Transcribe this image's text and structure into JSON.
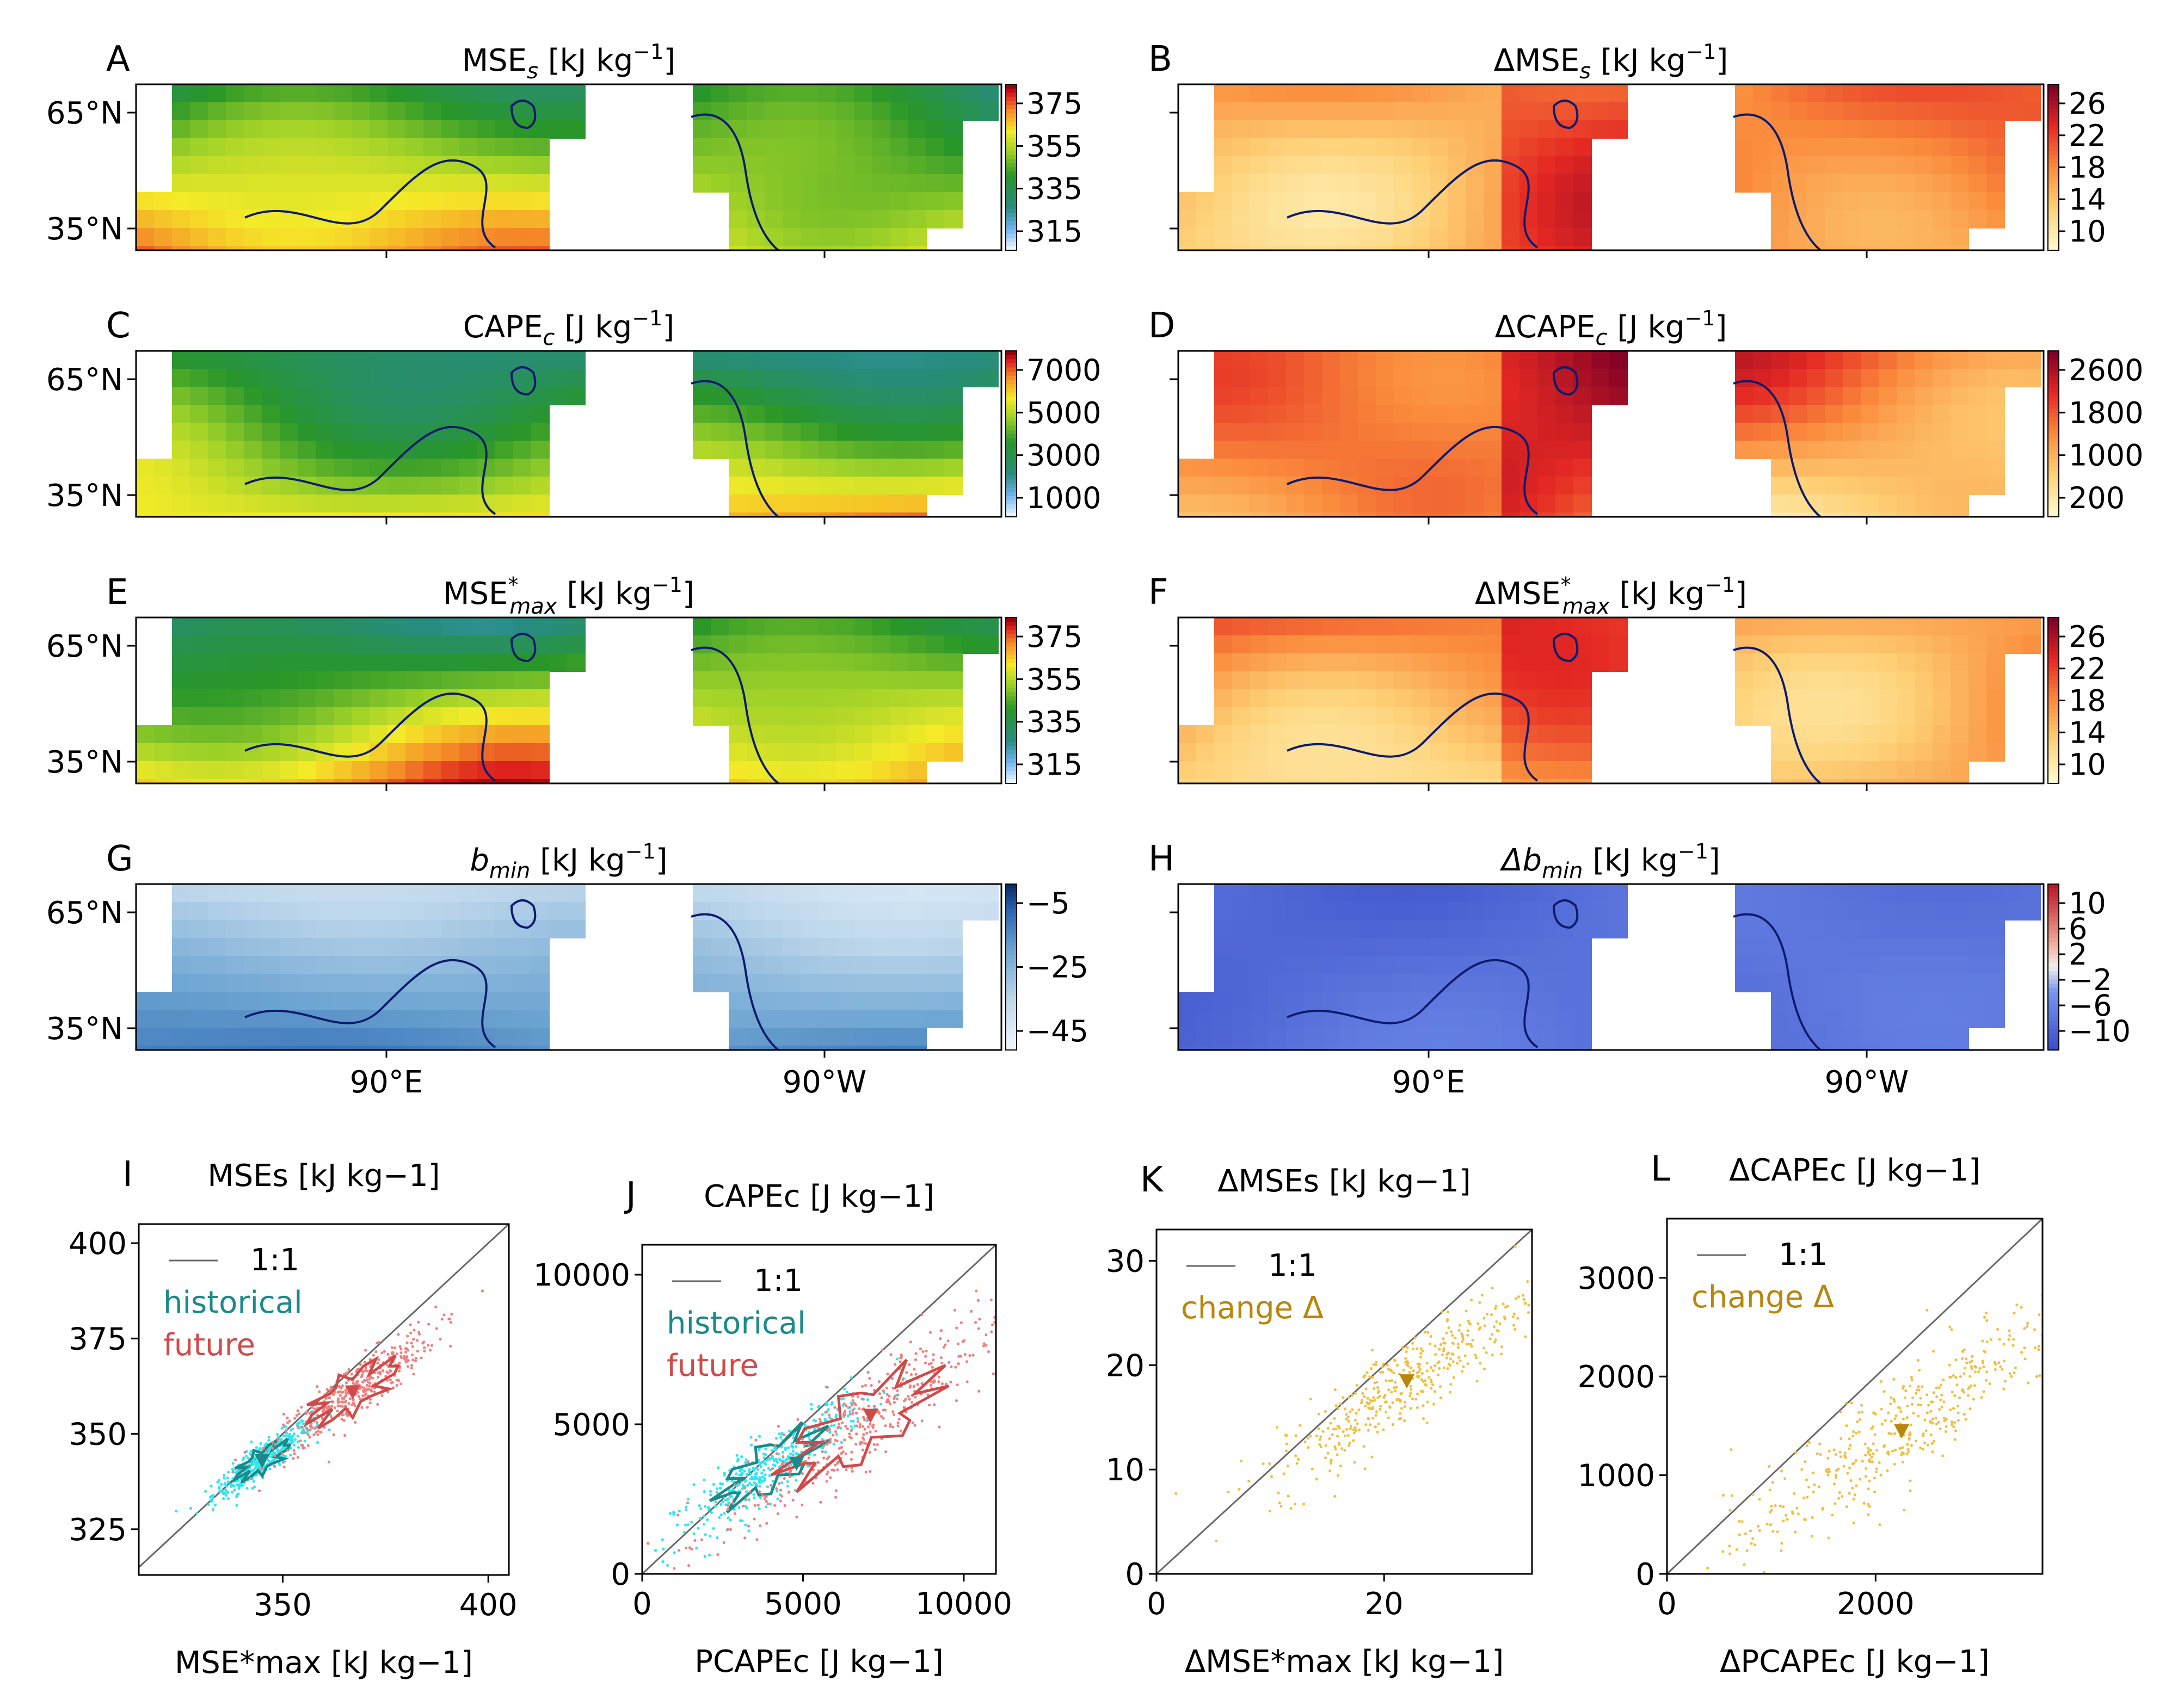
{
  "figure": {
    "map_panels": [
      {
        "letter": "A",
        "title_main": "MSE",
        "title_sub": "s",
        "title_unit": " [kJ kg",
        "cbar_ticks": [
          "375",
          "355",
          "335",
          "315"
        ],
        "cmap": "terrain"
      },
      {
        "letter": "B",
        "title_main": "ΔMSE",
        "title_sub": "s",
        "title_unit": " [kJ kg",
        "cbar_ticks": [
          "26",
          "22",
          "18",
          "14",
          "10"
        ],
        "cmap": "ylorrd"
      },
      {
        "letter": "C",
        "title_main": "CAPE",
        "title_sub": "c",
        "title_unit": " [J kg",
        "cbar_ticks": [
          "7000",
          "5000",
          "3000",
          "1000"
        ],
        "cmap": "terrain"
      },
      {
        "letter": "D",
        "title_main": "ΔCAPE",
        "title_sub": "c",
        "title_unit": " [J kg",
        "cbar_ticks": [
          "2600",
          "1800",
          "1000",
          "200"
        ],
        "cmap": "ylorrd"
      },
      {
        "letter": "E",
        "title_main": "MSE",
        "title_sub": "max",
        "title_sup": "*",
        "title_unit": " [kJ kg",
        "cbar_ticks": [
          "375",
          "355",
          "335",
          "315"
        ],
        "cmap": "terrain"
      },
      {
        "letter": "F",
        "title_main": "ΔMSE",
        "title_sub": "max",
        "title_sup": "*",
        "title_unit": " [kJ kg",
        "cbar_ticks": [
          "26",
          "22",
          "18",
          "14",
          "10"
        ],
        "cmap": "ylorrd"
      },
      {
        "letter": "G",
        "title_main": "b",
        "title_sub": "min",
        "title_unit": " [kJ kg",
        "cbar_ticks": [
          "−5",
          "−25",
          "−45"
        ],
        "cmap": "blues"
      },
      {
        "letter": "H",
        "title_main": "Δb",
        "title_sub": "min",
        "title_unit": " [kJ kg",
        "cbar_ticks": [
          "10",
          "6",
          "2",
          "−2",
          "−6",
          "−10"
        ],
        "cmap": "coolwarm"
      }
    ],
    "map_lat_ticks": [
      "65°N",
      "35°N"
    ],
    "map_lon_ticks": [
      "90°E",
      "90°W"
    ],
    "unit_exponent": "−1"
  },
  "chart_data": [
    {
      "type": "scatter",
      "panel": "I",
      "title": "MSEs [kJ kg−1]",
      "xlabel": "MSE*max [kJ kg−1]",
      "ylabel": "",
      "xlim": [
        315,
        405
      ],
      "ylim": [
        313,
        405
      ],
      "xticks": [
        "350",
        "400"
      ],
      "yticks": [
        "325",
        "350",
        "375",
        "400"
      ],
      "legend": [
        "1:1",
        "historical",
        "future"
      ],
      "series": [
        {
          "name": "historical",
          "color": "#1a8a8a",
          "point_color": "#2ee6f0",
          "center": [
            345,
            343
          ],
          "spread": 6,
          "mean_marker": [
            345,
            343
          ]
        },
        {
          "name": "future",
          "color": "#d04a4a",
          "point_color": "#f08080",
          "center": [
            367,
            361
          ],
          "spread": 10,
          "mean_marker": [
            367,
            361
          ]
        }
      ]
    },
    {
      "type": "scatter",
      "panel": "J",
      "title": "CAPEc [J kg−1]",
      "xlabel": "PCAPEc [J kg−1]",
      "ylabel": "",
      "xlim": [
        0,
        11000
      ],
      "ylim": [
        0,
        11000
      ],
      "xticks": [
        "0",
        "5000",
        "10000"
      ],
      "yticks": [
        "0",
        "5000",
        "10000"
      ],
      "legend": [
        "1:1",
        "historical",
        "future"
      ],
      "series": [
        {
          "name": "historical",
          "color": "#1a8a8a",
          "point_color": "#2ee6f0",
          "center": [
            4000,
            3600
          ],
          "spread": 1500,
          "mean_marker": [
            4800,
            3700
          ]
        },
        {
          "name": "future",
          "color": "#d04a4a",
          "point_color": "#f08080",
          "center": [
            6800,
            5000
          ],
          "spread": 2200,
          "mean_marker": [
            7100,
            5300
          ]
        }
      ]
    },
    {
      "type": "scatter",
      "panel": "K",
      "title": "ΔMSEs [kJ kg−1]",
      "xlabel": "ΔMSE*max [kJ kg−1]",
      "ylabel": "",
      "xlim": [
        0,
        33
      ],
      "ylim": [
        0,
        33
      ],
      "xticks": [
        "0",
        "20"
      ],
      "yticks": [
        "0",
        "10",
        "20",
        "30"
      ],
      "legend": [
        "1:1",
        "change Δ"
      ],
      "series": [
        {
          "name": "change Δ",
          "color": "#b8860b",
          "point_color": "#f0c040",
          "center": [
            22,
            18.5
          ],
          "spread": 6,
          "mean_marker": [
            22,
            18.5
          ]
        }
      ]
    },
    {
      "type": "scatter",
      "panel": "L",
      "title": "ΔCAPEc [J kg−1]",
      "xlabel": "ΔPCAPEc [J kg−1]",
      "ylabel": "",
      "xlim": [
        0,
        3600
      ],
      "ylim": [
        0,
        3600
      ],
      "xticks": [
        "0",
        "2000"
      ],
      "yticks": [
        "0",
        "1000",
        "2000",
        "3000"
      ],
      "legend": [
        "1:1",
        "change Δ"
      ],
      "series": [
        {
          "name": "change Δ",
          "color": "#b8860b",
          "point_color": "#f0c040",
          "center": [
            2200,
            1450
          ],
          "spread": 800,
          "mean_marker": [
            2250,
            1450
          ]
        }
      ]
    }
  ]
}
